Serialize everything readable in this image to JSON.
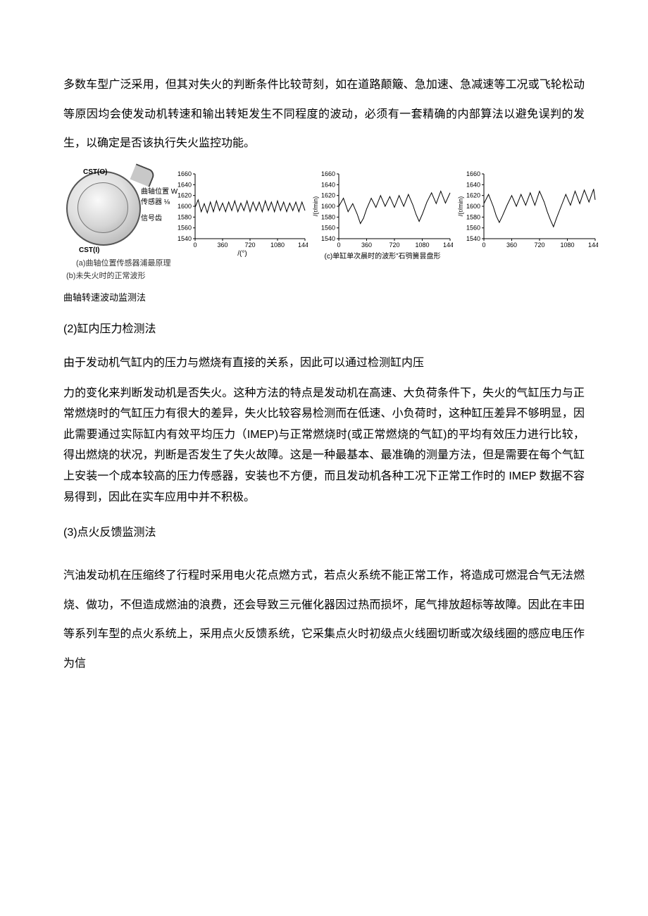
{
  "paragraphs": {
    "p1": "多数车型广泛采用，但其对失火的判断条件比较苛刻，如在道路颠簸、急加速、急减速等工况或飞轮松动等原因均会使发动机转速和输出转矩发生不同程度的波动，必须有一套精确的内部算法以避免误判的发生，以确定是否该执行失火监控功能。",
    "fig_caption": "曲轴转速波动监测法",
    "h2": "(2)缸内压力检测法",
    "p2a": "由于发动机气缸内的压力与燃烧有直接的关系，因此可以通过检测缸内压",
    "p2b": "力的变化来判断发动机是否失火。这种方法的特点是发动机在高速、大负荷条件下，失火的气缸压力与正常燃烧时的气缸压力有很大的差异，失火比较容易检测而在低速、小负荷时，这种缸压差异不够明显，因此需要通过实际缸内有效平均压力（IMEP)与正常燃烧时(或正常燃烧的气缸)的平均有效压力进行比较，得出燃烧的状况，判断是否发生了失火故障。这是一种最基本、最准确的测量方法，但是需要在每个气缸上安装一个成本较高的压力传感器，安装也不方便，而且发动机各种工况下正常工作时的 IMEP 数据不容易得到，因此在实车应用中并不积极。",
    "h3": "(3)点火反馈监测法",
    "p3": "汽油发动机在压缩终了行程时采用电火花点燃方式，若点火系统不能正常工作，将造成可燃混合气无法燃烧、做功，不但造成燃油的浪费，还会导致三元催化器因过热而损坏，尾气排放超标等故障。因此在丰田等系列车型的点火系统上，采用点火反馈系统，它采集点火时初级点火线圈切断或次级线圈的感应电压作为信"
  },
  "figure": {
    "panel_a": {
      "cst_o": "CST(O)",
      "cst_i": "CST(I)",
      "label1": "曲轴位置 W",
      "label2": "传感器 ⅛",
      "label3": "信号齿",
      "caption": "(a)曲轴位置传感器浦最原理"
    },
    "panel_b": {
      "caption": "(b)未失火时的正常波形",
      "xlabel": "/(°)",
      "yticks": [
        1540,
        1560,
        1580,
        1600,
        1620,
        1640,
        1660
      ],
      "xticks": [
        0,
        360,
        720,
        1080,
        1440
      ],
      "ylim": [
        1540,
        1660
      ],
      "xlim": [
        0,
        1440
      ],
      "line_color": "#000000",
      "axis_color": "#000000",
      "fontsize": 9,
      "series": [
        {
          "x": 0,
          "y": 1598
        },
        {
          "x": 40,
          "y": 1612
        },
        {
          "x": 80,
          "y": 1590
        },
        {
          "x": 120,
          "y": 1605
        },
        {
          "x": 160,
          "y": 1588
        },
        {
          "x": 200,
          "y": 1608
        },
        {
          "x": 240,
          "y": 1590
        },
        {
          "x": 280,
          "y": 1610
        },
        {
          "x": 320,
          "y": 1592
        },
        {
          "x": 360,
          "y": 1606
        },
        {
          "x": 400,
          "y": 1590
        },
        {
          "x": 440,
          "y": 1608
        },
        {
          "x": 480,
          "y": 1592
        },
        {
          "x": 520,
          "y": 1610
        },
        {
          "x": 560,
          "y": 1590
        },
        {
          "x": 600,
          "y": 1606
        },
        {
          "x": 640,
          "y": 1592
        },
        {
          "x": 680,
          "y": 1610
        },
        {
          "x": 720,
          "y": 1590
        },
        {
          "x": 760,
          "y": 1608
        },
        {
          "x": 800,
          "y": 1592
        },
        {
          "x": 840,
          "y": 1608
        },
        {
          "x": 880,
          "y": 1590
        },
        {
          "x": 920,
          "y": 1610
        },
        {
          "x": 960,
          "y": 1592
        },
        {
          "x": 1000,
          "y": 1608
        },
        {
          "x": 1040,
          "y": 1590
        },
        {
          "x": 1080,
          "y": 1610
        },
        {
          "x": 1120,
          "y": 1592
        },
        {
          "x": 1160,
          "y": 1608
        },
        {
          "x": 1200,
          "y": 1590
        },
        {
          "x": 1240,
          "y": 1606
        },
        {
          "x": 1280,
          "y": 1592
        },
        {
          "x": 1320,
          "y": 1608
        },
        {
          "x": 1360,
          "y": 1590
        },
        {
          "x": 1400,
          "y": 1608
        },
        {
          "x": 1440,
          "y": 1592
        }
      ]
    },
    "panel_c": {
      "caption": "(c)单缸单次晨时的波形”石鸮簧昙盘形",
      "ylabel": "/(r/min)",
      "yticks": [
        1540,
        1560,
        1580,
        1600,
        1620,
        1640,
        1660
      ],
      "xticks": [
        0,
        360,
        720,
        1080,
        1440
      ],
      "ylim": [
        1540,
        1660
      ],
      "xlim": [
        0,
        1440
      ],
      "line_color": "#000000",
      "axis_color": "#000000",
      "fontsize": 9,
      "series": [
        {
          "x": 0,
          "y": 1600
        },
        {
          "x": 60,
          "y": 1615
        },
        {
          "x": 120,
          "y": 1590
        },
        {
          "x": 180,
          "y": 1605
        },
        {
          "x": 240,
          "y": 1585
        },
        {
          "x": 280,
          "y": 1568
        },
        {
          "x": 320,
          "y": 1578
        },
        {
          "x": 360,
          "y": 1595
        },
        {
          "x": 420,
          "y": 1615
        },
        {
          "x": 480,
          "y": 1598
        },
        {
          "x": 540,
          "y": 1620
        },
        {
          "x": 600,
          "y": 1600
        },
        {
          "x": 660,
          "y": 1618
        },
        {
          "x": 720,
          "y": 1598
        },
        {
          "x": 780,
          "y": 1620
        },
        {
          "x": 840,
          "y": 1600
        },
        {
          "x": 900,
          "y": 1622
        },
        {
          "x": 960,
          "y": 1602
        },
        {
          "x": 1000,
          "y": 1585
        },
        {
          "x": 1040,
          "y": 1572
        },
        {
          "x": 1080,
          "y": 1585
        },
        {
          "x": 1140,
          "y": 1608
        },
        {
          "x": 1200,
          "y": 1625
        },
        {
          "x": 1260,
          "y": 1605
        },
        {
          "x": 1320,
          "y": 1628
        },
        {
          "x": 1380,
          "y": 1606
        },
        {
          "x": 1440,
          "y": 1625
        }
      ]
    },
    "panel_d": {
      "ylabel": "/(r/min)",
      "yticks": [
        1540,
        1560,
        1580,
        1600,
        1620,
        1640,
        1660
      ],
      "xticks": [
        0,
        360,
        720,
        1080,
        1440
      ],
      "ylim": [
        1540,
        1660
      ],
      "xlim": [
        0,
        1440
      ],
      "line_color": "#000000",
      "axis_color": "#000000",
      "fontsize": 9,
      "series": [
        {
          "x": 0,
          "y": 1605
        },
        {
          "x": 60,
          "y": 1622
        },
        {
          "x": 120,
          "y": 1600
        },
        {
          "x": 160,
          "y": 1582
        },
        {
          "x": 200,
          "y": 1570
        },
        {
          "x": 240,
          "y": 1582
        },
        {
          "x": 300,
          "y": 1602
        },
        {
          "x": 360,
          "y": 1620
        },
        {
          "x": 420,
          "y": 1600
        },
        {
          "x": 480,
          "y": 1622
        },
        {
          "x": 540,
          "y": 1602
        },
        {
          "x": 600,
          "y": 1625
        },
        {
          "x": 660,
          "y": 1602
        },
        {
          "x": 720,
          "y": 1628
        },
        {
          "x": 780,
          "y": 1608
        },
        {
          "x": 820,
          "y": 1590
        },
        {
          "x": 860,
          "y": 1575
        },
        {
          "x": 900,
          "y": 1562
        },
        {
          "x": 940,
          "y": 1578
        },
        {
          "x": 1000,
          "y": 1600
        },
        {
          "x": 1060,
          "y": 1622
        },
        {
          "x": 1120,
          "y": 1602
        },
        {
          "x": 1180,
          "y": 1628
        },
        {
          "x": 1240,
          "y": 1605
        },
        {
          "x": 1300,
          "y": 1630
        },
        {
          "x": 1360,
          "y": 1608
        },
        {
          "x": 1420,
          "y": 1632
        },
        {
          "x": 1440,
          "y": 1612
        }
      ]
    }
  }
}
